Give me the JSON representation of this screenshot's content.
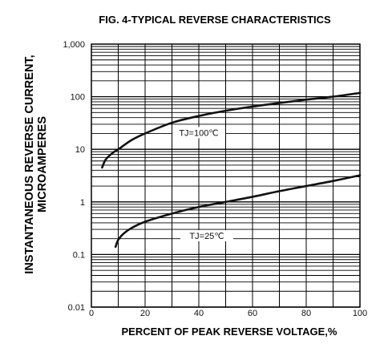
{
  "chart_data": {
    "type": "line",
    "title": "FIG. 4-TYPICAL REVERSE CHARACTERISTICS",
    "xlabel": "PERCENT OF PEAK REVERSE VOLTAGE,%",
    "ylabel_line1": "INSTANTANEOUS REVERSE CURRENT,",
    "ylabel_line2": "MICROAMPERES",
    "xlim": [
      0,
      100
    ],
    "ylim": [
      0.01,
      1000
    ],
    "y_scale": "log",
    "grid": true,
    "x_ticks": [
      {
        "value": 0,
        "label": "0"
      },
      {
        "value": 20,
        "label": "20"
      },
      {
        "value": 40,
        "label": "40"
      },
      {
        "value": 60,
        "label": "60"
      },
      {
        "value": 80,
        "label": "80"
      },
      {
        "value": 100,
        "label": "100"
      }
    ],
    "y_ticks": [
      {
        "value": 1000,
        "label": "1,000"
      },
      {
        "value": 100,
        "label": "100"
      },
      {
        "value": 10,
        "label": "10"
      },
      {
        "value": 1,
        "label": "1"
      },
      {
        "value": 0.1,
        "label": "0.1"
      },
      {
        "value": 0.01,
        "label": "0.01"
      }
    ],
    "series": [
      {
        "name": "TJ=100℃",
        "x": [
          4,
          5,
          6,
          8,
          10,
          15,
          20,
          30,
          40,
          50,
          60,
          70,
          80,
          90,
          100
        ],
        "y": [
          4.5,
          6,
          7,
          8.6,
          10,
          15,
          20,
          32,
          43,
          54,
          65,
          76,
          88,
          100,
          118
        ]
      },
      {
        "name": "TJ=25℃",
        "x": [
          9,
          10,
          12,
          15,
          20,
          30,
          40,
          50,
          60,
          70,
          80,
          90,
          100
        ],
        "y": [
          0.14,
          0.19,
          0.25,
          0.32,
          0.42,
          0.6,
          0.8,
          1.0,
          1.25,
          1.6,
          2.0,
          2.5,
          3.2
        ]
      }
    ]
  }
}
